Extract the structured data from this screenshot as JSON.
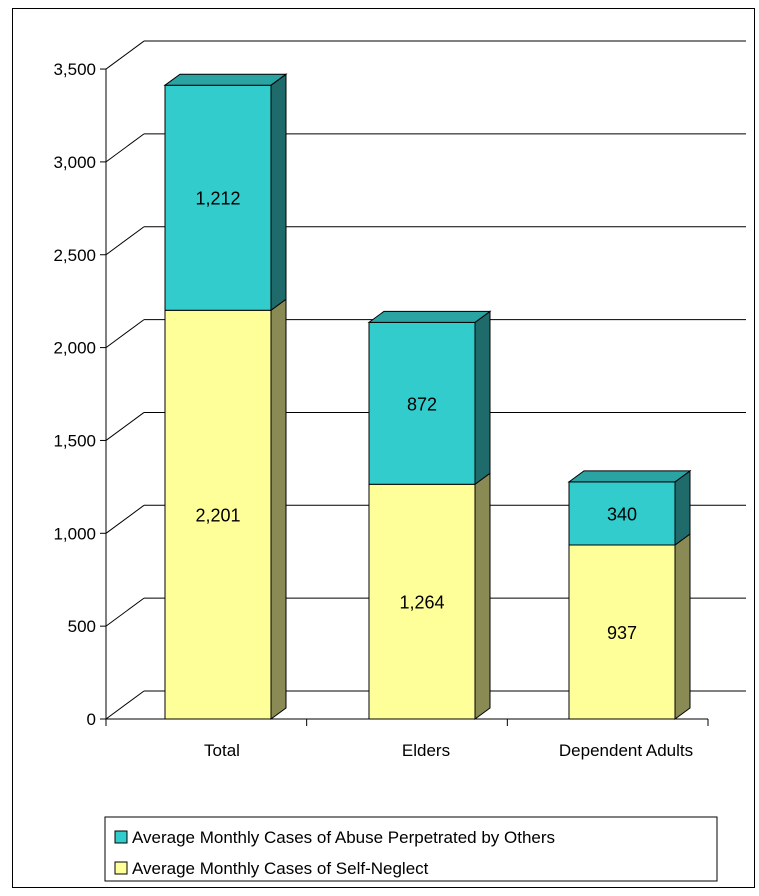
{
  "chart_data": {
    "type": "bar",
    "stacked": true,
    "categories": [
      "Total",
      "Elders",
      "Dependent Adults"
    ],
    "series": [
      {
        "name": "Average Monthly Cases of Self-Neglect",
        "values": [
          2201,
          1264,
          937
        ],
        "color": "#ffff99"
      },
      {
        "name": "Average Monthly Cases of Abuse Perpetrated by Others",
        "values": [
          1212,
          872,
          340
        ],
        "color": "#33cccc"
      }
    ],
    "data_labels": {
      "series_0": [
        "2,201",
        "1,264",
        "937"
      ],
      "series_1": [
        "1,212",
        "872",
        "340"
      ]
    },
    "yticks": [
      0,
      500,
      1000,
      1500,
      2000,
      2500,
      3000,
      3500
    ],
    "ytick_labels": [
      "0",
      "500",
      "1,000",
      "1,500",
      "2,000",
      "2,500",
      "3,000",
      "3,500"
    ],
    "ylim": [
      0,
      3500
    ],
    "grid": true,
    "legend_position": "bottom",
    "legend_entries": [
      {
        "label": "Average Monthly Cases of Abuse Perpetrated by Others",
        "color": "#33cccc"
      },
      {
        "label": "Average Monthly Cases of Self-Neglect",
        "color": "#ffff99"
      }
    ],
    "colors": {
      "yellow_front": "#ffff99",
      "yellow_side": "#8a8a55",
      "teal_front": "#33cccc",
      "teal_side": "#1f6b6b",
      "teal_top": "#2aa3a3"
    },
    "title": "",
    "xlabel": "",
    "ylabel": ""
  }
}
